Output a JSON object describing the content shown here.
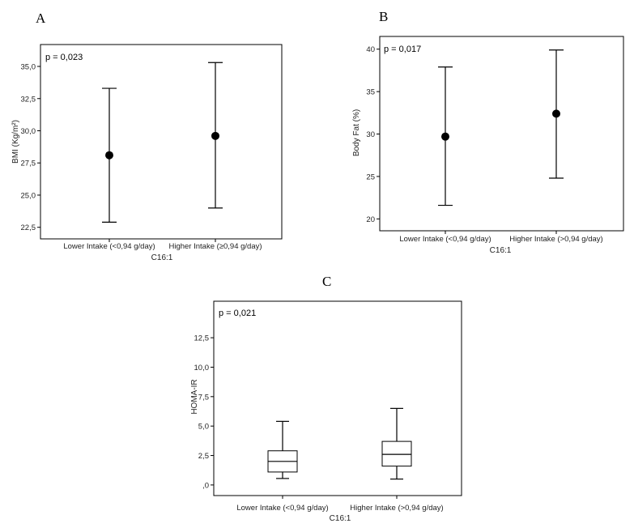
{
  "chart_data": [
    {
      "type": "errorbar",
      "panel_label": "A",
      "annotation": "p = 0,023",
      "xlabel": "C16:1",
      "ylabel": "BMI (Kg/m²)",
      "ylim": [
        21.6,
        36.7
      ],
      "yticks": [
        22.5,
        25.0,
        27.5,
        30.0,
        32.5,
        35.0
      ],
      "ytick_labels": [
        "22,5",
        "25,0",
        "27,5",
        "30,0",
        "32,5",
        "35,0"
      ],
      "categories": [
        "Lower Intake (<0,94 g/day)",
        "Higher Intake (≥0,94 g/day)"
      ],
      "points": [
        {
          "mean": 28.1,
          "lower": 22.9,
          "upper": 33.3
        },
        {
          "mean": 29.6,
          "lower": 24.0,
          "upper": 35.3
        }
      ]
    },
    {
      "type": "errorbar",
      "panel_label": "B",
      "annotation": "p = 0,017",
      "xlabel": "C16:1",
      "ylabel": "Body Fat (%)",
      "ylim": [
        18.6,
        41.5
      ],
      "yticks": [
        20,
        25,
        30,
        35,
        40
      ],
      "ytick_labels": [
        "20",
        "25",
        "30",
        "35",
        "40"
      ],
      "categories": [
        "Lower Intake (<0,94 g/day)",
        "Higher Intake (>0,94 g/day)"
      ],
      "points": [
        {
          "mean": 29.7,
          "lower": 21.6,
          "upper": 37.9
        },
        {
          "mean": 32.4,
          "lower": 24.8,
          "upper": 39.9
        }
      ]
    },
    {
      "type": "box",
      "panel_label": "C",
      "annotation": "p = 0,021",
      "xlabel": "C16:1",
      "ylabel": "HOMA-IR",
      "ylim": [
        -0.9,
        15.6
      ],
      "yticks": [
        0,
        2.5,
        5.0,
        7.5,
        10.0,
        12.5
      ],
      "ytick_labels": [
        ",0",
        "2,5",
        "5,0",
        "7,5",
        "10,0",
        "12,5"
      ],
      "categories": [
        "Lower Intake (<0,94 g/day)",
        "Higher Intake (>0,94 g/day)"
      ],
      "boxes": [
        {
          "min": 0.55,
          "q1": 1.1,
          "median": 2.0,
          "q3": 2.9,
          "max": 5.4
        },
        {
          "min": 0.5,
          "q1": 1.6,
          "median": 2.6,
          "q3": 3.7,
          "max": 6.5
        }
      ]
    }
  ]
}
